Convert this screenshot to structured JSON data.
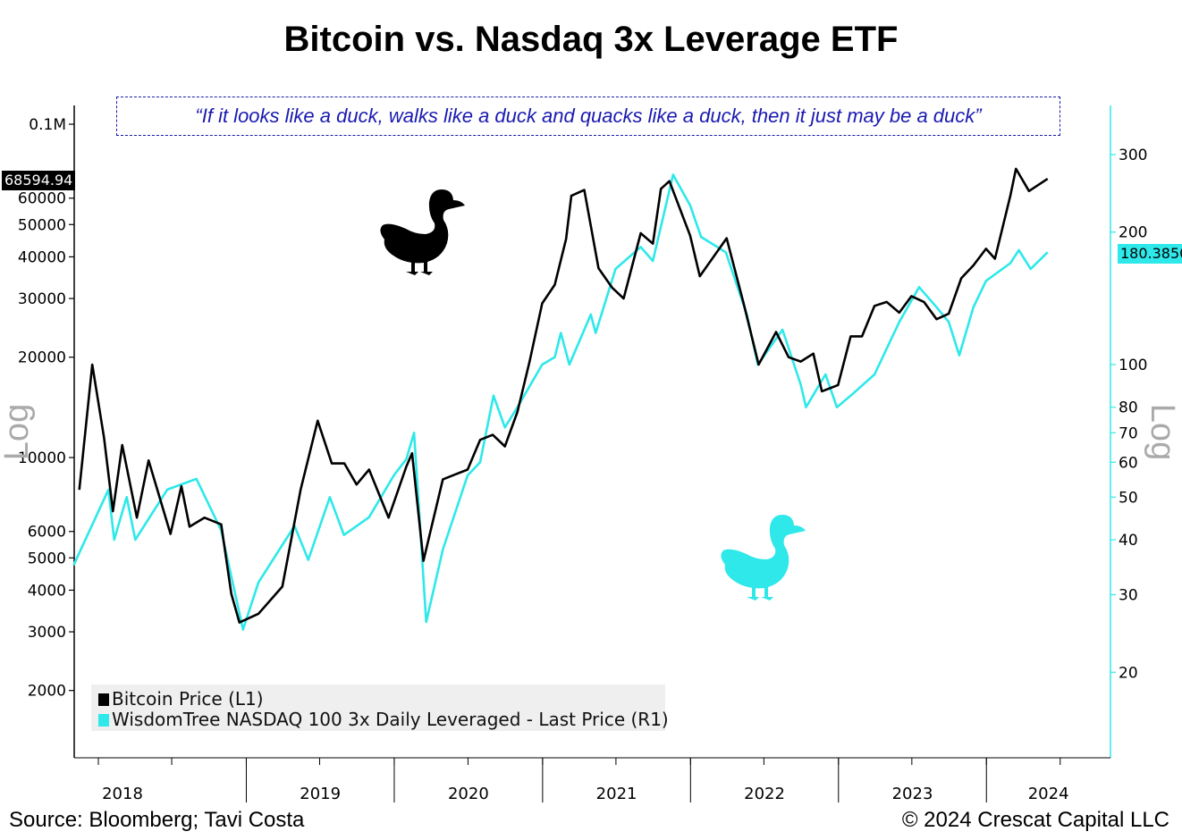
{
  "header": {
    "title": "Bitcoin vs. Nasdaq 3x Leverage ETF",
    "quote": "“If it looks like a duck, walks like a duck and quacks like a duck, then it just may be a duck”"
  },
  "footer": {
    "source": "Source: Bloomberg; Tavi Costa",
    "copyright": "© 2024 Crescat Capital LLC"
  },
  "colors": {
    "bitcoin": "#000000",
    "etf": "#2ee8ea",
    "quote": "#1a1ab0",
    "legend_bg": "#efefef"
  },
  "icons": [
    "duck-icon-black",
    "duck-icon-cyan"
  ],
  "chart_data": {
    "type": "line",
    "title": "Bitcoin vs. Nasdaq 3x Leverage ETF",
    "scale": "log",
    "axis_left": {
      "label": "Log",
      "ticks": [
        {
          "value": 100000,
          "label": "0.1M"
        },
        {
          "value": 60000,
          "label": "60000"
        },
        {
          "value": 50000,
          "label": "50000"
        },
        {
          "value": 40000,
          "label": "40000"
        },
        {
          "value": 30000,
          "label": "30000"
        },
        {
          "value": 20000,
          "label": "20000"
        },
        {
          "value": 10000,
          "label": "10000"
        },
        {
          "value": 6000,
          "label": "6000"
        },
        {
          "value": 5000,
          "label": "5000"
        },
        {
          "value": 4000,
          "label": "4000"
        },
        {
          "value": 3000,
          "label": "3000"
        },
        {
          "value": 2000,
          "label": "2000"
        }
      ],
      "current_value_label": "68594.94"
    },
    "axis_right": {
      "label": "Log",
      "ticks": [
        {
          "value": 300,
          "label": "300"
        },
        {
          "value": 200,
          "label": "200"
        },
        {
          "value": 100,
          "label": "100"
        },
        {
          "value": 80,
          "label": "80"
        },
        {
          "value": 70,
          "label": "70"
        },
        {
          "value": 60,
          "label": "60"
        },
        {
          "value": 50,
          "label": "50"
        },
        {
          "value": 40,
          "label": "40"
        },
        {
          "value": 30,
          "label": "30"
        },
        {
          "value": 20,
          "label": "20"
        }
      ],
      "current_value_label": "180.3850"
    },
    "x_range": [
      "2017-11-01",
      "2024-06-30"
    ],
    "x_years": [
      "2018",
      "2019",
      "2020",
      "2021",
      "2022",
      "2023",
      "2024"
    ],
    "x_tick_dates": [
      "2018-01-01",
      "2018-07-01",
      "2019-01-01",
      "2019-07-01",
      "2020-01-01",
      "2020-07-01",
      "2021-01-01",
      "2021-07-01",
      "2022-01-01",
      "2022-07-01",
      "2023-01-01",
      "2023-07-01",
      "2024-01-01",
      "2024-07-01"
    ],
    "legend": {
      "position": "bottom-left",
      "entries": [
        "Bitcoin Price (L1)",
        "WisdomTree NASDAQ 100 3x Daily Leveraged - Last Price (R1)"
      ]
    },
    "series": [
      {
        "name": "Bitcoin Price (L1)",
        "axis": "left",
        "x": [
          "2017-11-15",
          "2017-12-17",
          "2018-01-15",
          "2018-02-06",
          "2018-03-01",
          "2018-04-06",
          "2018-05-05",
          "2018-06-28",
          "2018-07-25",
          "2018-08-14",
          "2018-09-20",
          "2018-10-31",
          "2018-11-25",
          "2018-12-15",
          "2019-01-31",
          "2019-03-31",
          "2019-05-15",
          "2019-06-26",
          "2019-07-31",
          "2019-08-31",
          "2019-09-30",
          "2019-10-31",
          "2019-12-18",
          "2020-01-31",
          "2020-02-14",
          "2020-03-13",
          "2020-04-30",
          "2020-06-30",
          "2020-07-31",
          "2020-08-31",
          "2020-09-30",
          "2020-10-31",
          "2020-11-30",
          "2020-12-31",
          "2021-01-31",
          "2021-02-28",
          "2021-03-13",
          "2021-04-14",
          "2021-05-19",
          "2021-06-22",
          "2021-07-20",
          "2021-08-31",
          "2021-09-30",
          "2021-10-20",
          "2021-11-10",
          "2021-12-31",
          "2022-01-24",
          "2022-03-31",
          "2022-05-12",
          "2022-06-18",
          "2022-07-31",
          "2022-08-31",
          "2022-09-30",
          "2022-10-31",
          "2022-11-21",
          "2022-12-31",
          "2023-01-31",
          "2023-02-28",
          "2023-03-31",
          "2023-04-30",
          "2023-05-31",
          "2023-06-30",
          "2023-07-31",
          "2023-08-31",
          "2023-09-30",
          "2023-10-31",
          "2023-11-30",
          "2023-12-31",
          "2024-01-22",
          "2024-02-29",
          "2024-03-14",
          "2024-04-15",
          "2024-05-31"
        ],
        "values": [
          8000,
          19000,
          11500,
          6900,
          10900,
          6600,
          9800,
          5900,
          8200,
          6200,
          6600,
          6300,
          3900,
          3200,
          3400,
          4100,
          8000,
          12900,
          9600,
          9600,
          8300,
          9200,
          6600,
          9400,
          10300,
          4900,
          8600,
          9200,
          11300,
          11700,
          10800,
          13700,
          19400,
          29000,
          33000,
          45200,
          61000,
          63500,
          37000,
          32300,
          30000,
          47100,
          43800,
          64000,
          67500,
          46300,
          35000,
          45500,
          29000,
          19000,
          23800,
          20000,
          19400,
          20500,
          15800,
          16500,
          23100,
          23100,
          28500,
          29300,
          27200,
          30500,
          29300,
          26000,
          27000,
          34500,
          37700,
          42300,
          39500,
          61000,
          73500,
          63000,
          68595
        ]
      },
      {
        "name": "WisdomTree NASDAQ 100 3x Daily Leveraged - Last Price (R1)",
        "axis": "right",
        "x": [
          "2017-11-01",
          "2018-01-26",
          "2018-02-09",
          "2018-03-12",
          "2018-04-02",
          "2018-06-20",
          "2018-08-31",
          "2018-10-31",
          "2018-12-24",
          "2019-01-31",
          "2019-04-30",
          "2019-06-03",
          "2019-07-26",
          "2019-08-30",
          "2019-10-31",
          "2019-12-31",
          "2020-01-31",
          "2020-02-19",
          "2020-03-20",
          "2020-04-30",
          "2020-06-30",
          "2020-07-31",
          "2020-09-02",
          "2020-09-30",
          "2020-10-31",
          "2020-12-31",
          "2021-01-31",
          "2021-02-15",
          "2021-03-08",
          "2021-04-30",
          "2021-05-12",
          "2021-06-30",
          "2021-08-31",
          "2021-09-30",
          "2021-11-19",
          "2021-12-31",
          "2022-01-27",
          "2022-03-29",
          "2022-05-20",
          "2022-06-16",
          "2022-08-16",
          "2022-09-30",
          "2022-10-13",
          "2022-11-30",
          "2022-12-28",
          "2023-01-31",
          "2023-03-31",
          "2023-05-31",
          "2023-07-19",
          "2023-08-31",
          "2023-09-30",
          "2023-10-26",
          "2023-11-30",
          "2023-12-31",
          "2024-02-29",
          "2024-03-21",
          "2024-04-19",
          "2024-05-31"
        ],
        "values": [
          35,
          52,
          40,
          50,
          40,
          52,
          55,
          42,
          25,
          32,
          43,
          36,
          50,
          41,
          45,
          56,
          61,
          70,
          26,
          38,
          56,
          60,
          85,
          72,
          80,
          100,
          104,
          118,
          100,
          130,
          118,
          165,
          185,
          172,
          270,
          230,
          195,
          180,
          130,
          100,
          120,
          90,
          80,
          95,
          80,
          85,
          95,
          125,
          150,
          135,
          125,
          105,
          135,
          155,
          170,
          182,
          165,
          180
        ]
      }
    ]
  }
}
